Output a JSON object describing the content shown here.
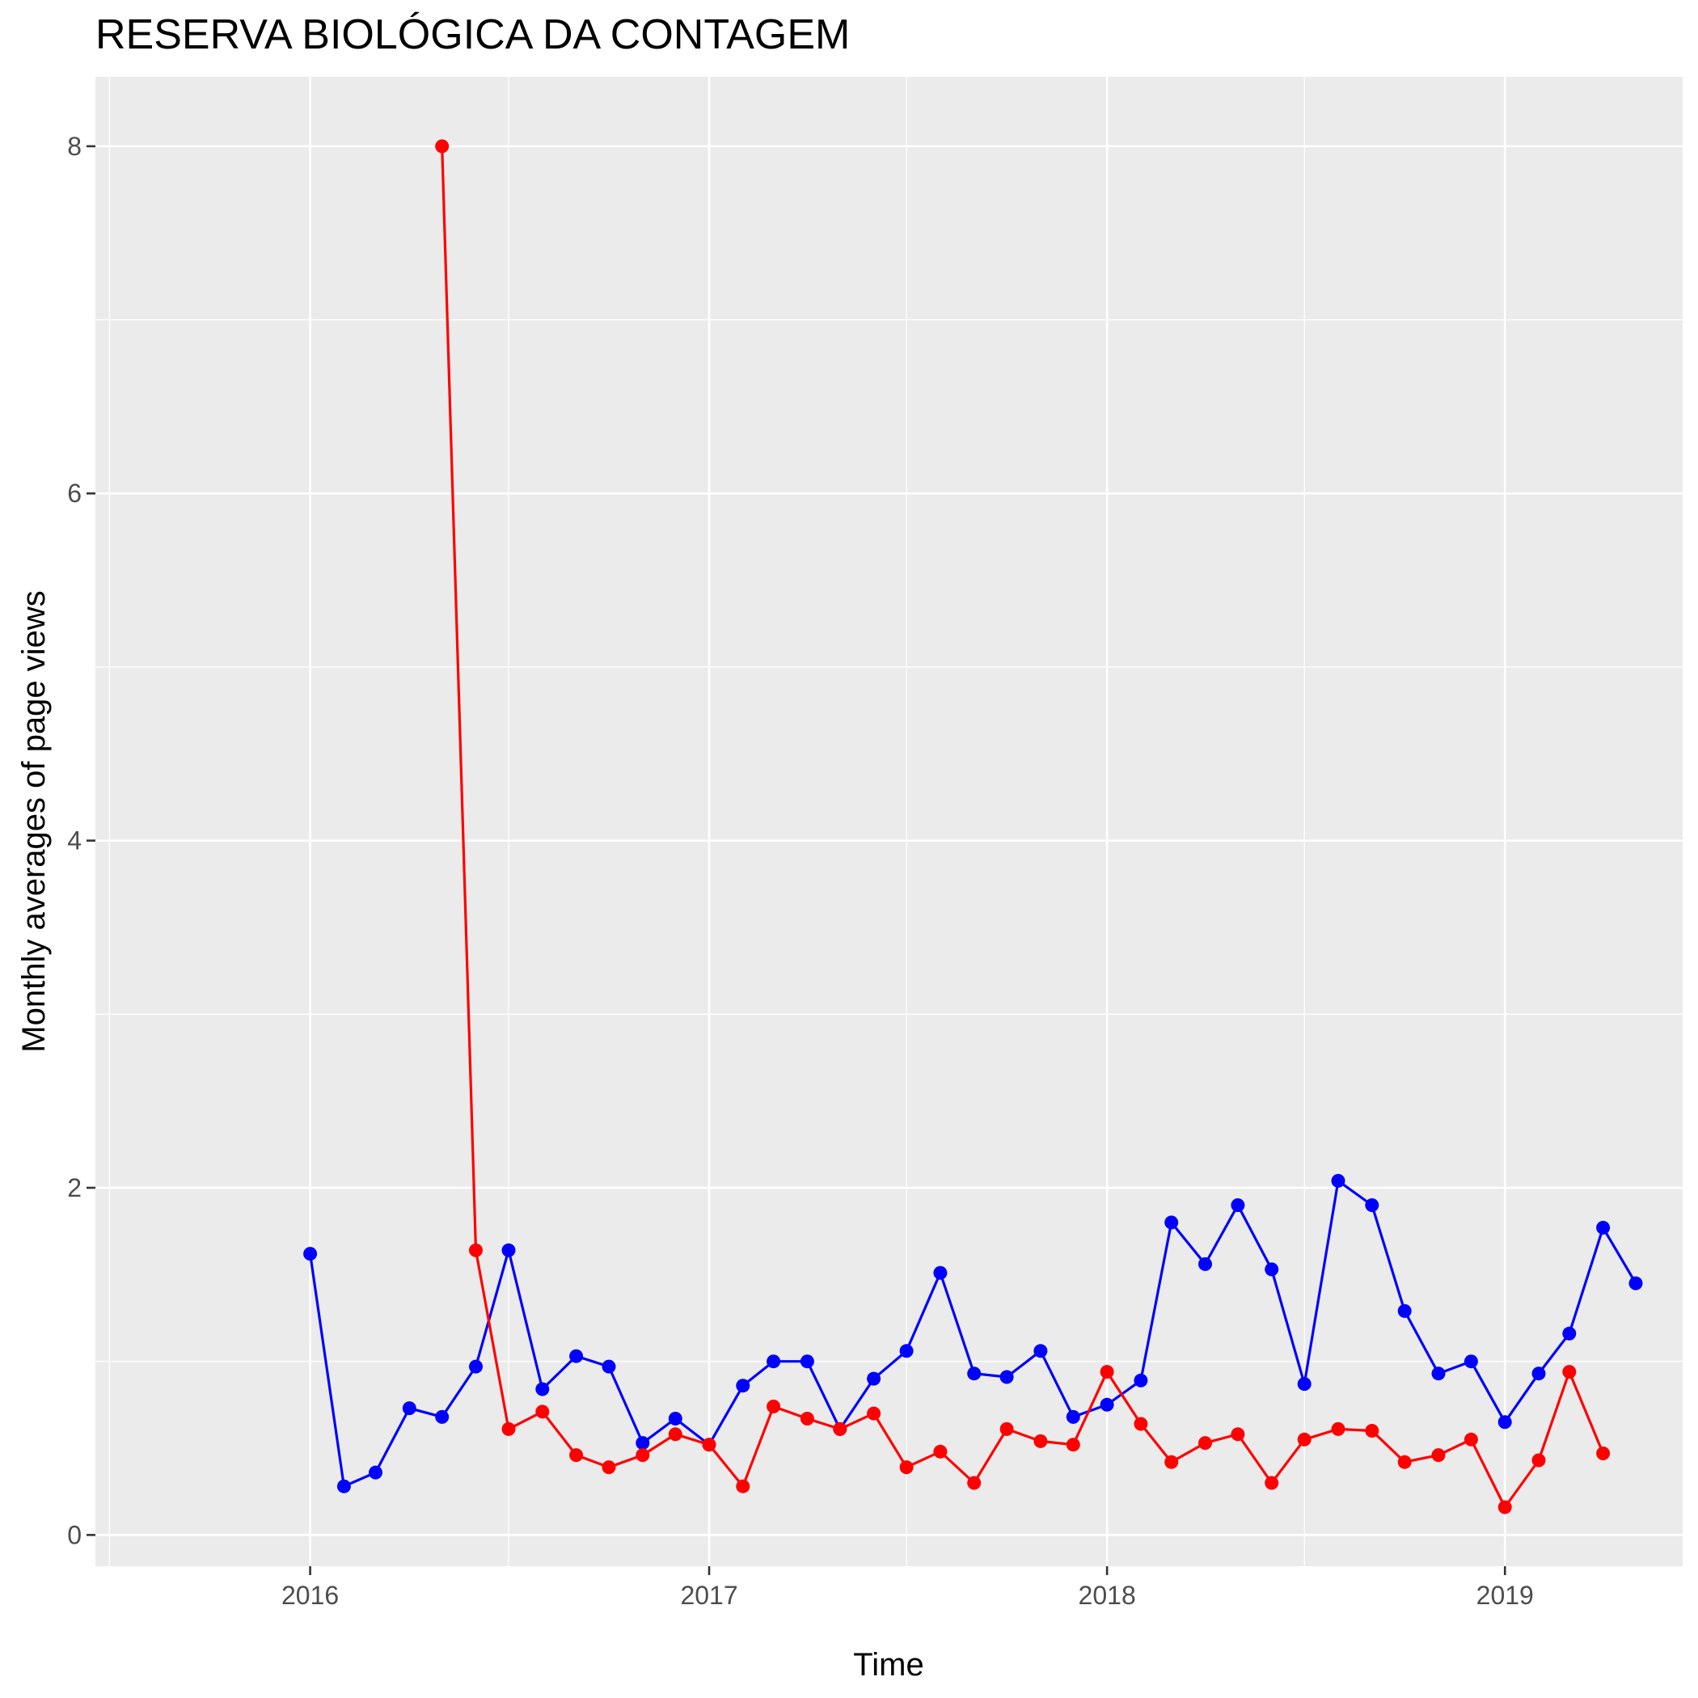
{
  "chart_data": {
    "type": "line",
    "title": "RESERVA BIOLÓGICA DA CONTAGEM",
    "xlabel": "Time",
    "ylabel": "Monthly averages of page views",
    "x_ticks": [
      "2016",
      "2017",
      "2018",
      "2019"
    ],
    "y_ticks": [
      "0",
      "2",
      "4",
      "6",
      "8"
    ],
    "xlim": [
      "2015-06-18",
      "2019-06-13"
    ],
    "ylim": [
      -0.18,
      8.4
    ],
    "grid": true,
    "panel_background": "#EBEBEB",
    "series": [
      {
        "color": "#0000FF",
        "points": [
          [
            "2016-01-01",
            1.62
          ],
          [
            "2016-02-01",
            0.28
          ],
          [
            "2016-03-01",
            0.36
          ],
          [
            "2016-04-01",
            0.73
          ],
          [
            "2016-05-01",
            0.68
          ],
          [
            "2016-06-01",
            0.97
          ],
          [
            "2016-07-01",
            1.64
          ],
          [
            "2016-08-01",
            0.84
          ],
          [
            "2016-09-01",
            1.03
          ],
          [
            "2016-10-01",
            0.97
          ],
          [
            "2016-11-01",
            0.53
          ],
          [
            "2016-12-01",
            0.67
          ],
          [
            "2017-01-01",
            0.52
          ],
          [
            "2017-02-01",
            0.86
          ],
          [
            "2017-03-01",
            1.0
          ],
          [
            "2017-04-01",
            1.0
          ],
          [
            "2017-05-01",
            0.61
          ],
          [
            "2017-06-01",
            0.9
          ],
          [
            "2017-07-01",
            1.06
          ],
          [
            "2017-08-01",
            1.51
          ],
          [
            "2017-09-01",
            0.93
          ],
          [
            "2017-10-01",
            0.91
          ],
          [
            "2017-11-01",
            1.06
          ],
          [
            "2017-12-01",
            0.68
          ],
          [
            "2018-01-01",
            0.75
          ],
          [
            "2018-02-01",
            0.89
          ],
          [
            "2018-03-01",
            1.8
          ],
          [
            "2018-04-01",
            1.56
          ],
          [
            "2018-05-01",
            1.9
          ],
          [
            "2018-06-01",
            1.53
          ],
          [
            "2018-07-01",
            0.87
          ],
          [
            "2018-08-01",
            2.04
          ],
          [
            "2018-09-01",
            1.9
          ],
          [
            "2018-10-01",
            1.29
          ],
          [
            "2018-11-01",
            0.93
          ],
          [
            "2018-12-01",
            1.0
          ],
          [
            "2019-01-01",
            0.65
          ],
          [
            "2019-02-01",
            0.93
          ],
          [
            "2019-03-01",
            1.16
          ],
          [
            "2019-04-01",
            1.77
          ],
          [
            "2019-05-01",
            1.45
          ]
        ]
      },
      {
        "color": "#FF0000",
        "points": [
          [
            "2016-05-01",
            8.0
          ],
          [
            "2016-06-01",
            1.64
          ],
          [
            "2016-07-01",
            0.61
          ],
          [
            "2016-08-01",
            0.71
          ],
          [
            "2016-09-01",
            0.46
          ],
          [
            "2016-10-01",
            0.39
          ],
          [
            "2016-11-01",
            0.46
          ],
          [
            "2016-12-01",
            0.58
          ],
          [
            "2017-01-01",
            0.52
          ],
          [
            "2017-02-01",
            0.28
          ],
          [
            "2017-03-01",
            0.74
          ],
          [
            "2017-04-01",
            0.67
          ],
          [
            "2017-05-01",
            0.61
          ],
          [
            "2017-06-01",
            0.7
          ],
          [
            "2017-07-01",
            0.39
          ],
          [
            "2017-08-01",
            0.48
          ],
          [
            "2017-09-01",
            0.3
          ],
          [
            "2017-10-01",
            0.61
          ],
          [
            "2017-11-01",
            0.54
          ],
          [
            "2017-12-01",
            0.52
          ],
          [
            "2018-01-01",
            0.94
          ],
          [
            "2018-02-01",
            0.64
          ],
          [
            "2018-03-01",
            0.42
          ],
          [
            "2018-04-01",
            0.53
          ],
          [
            "2018-05-01",
            0.58
          ],
          [
            "2018-06-01",
            0.3
          ],
          [
            "2018-07-01",
            0.55
          ],
          [
            "2018-08-01",
            0.61
          ],
          [
            "2018-09-01",
            0.6
          ],
          [
            "2018-10-01",
            0.42
          ],
          [
            "2018-11-01",
            0.46
          ],
          [
            "2018-12-01",
            0.55
          ],
          [
            "2019-01-01",
            0.16
          ],
          [
            "2019-02-01",
            0.43
          ],
          [
            "2019-03-01",
            0.94
          ],
          [
            "2019-04-01",
            0.47
          ]
        ]
      }
    ]
  }
}
